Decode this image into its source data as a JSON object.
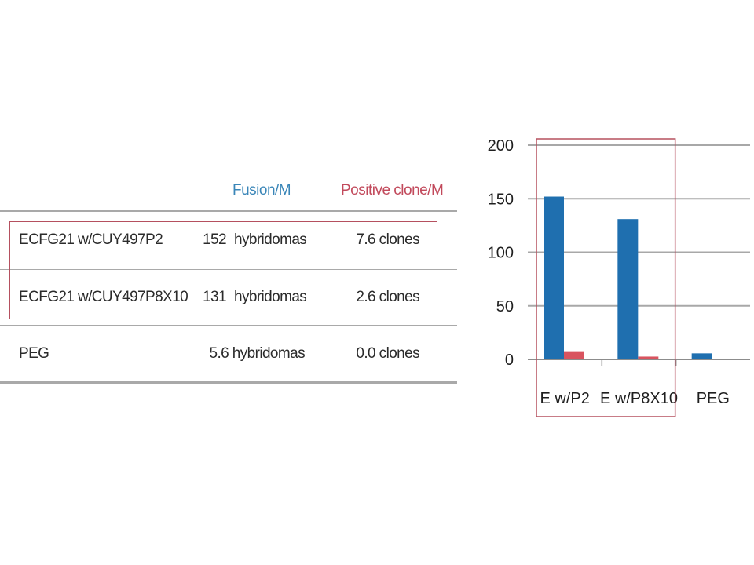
{
  "table": {
    "headers": {
      "fusion": "Fusion/M",
      "positive": "Positive clone/M"
    },
    "rows": [
      {
        "name": "ECFG21 w/CUY497P2",
        "fusion_value": "152",
        "fusion_unit": "hybridomas",
        "clones": "7.6 clones",
        "highlighted": true
      },
      {
        "name": "ECFG21 w/CUY497P8X10",
        "fusion_value": "131",
        "fusion_unit": "hybridomas",
        "clones": "2.6 clones",
        "highlighted": true
      },
      {
        "name": "PEG",
        "fusion_full": "5.6 hybridomas",
        "clones": "0.0 clones",
        "highlighted": false
      }
    ]
  },
  "colors": {
    "fusion": "#1f6faf",
    "positive": "#d9545f",
    "highlight_border": "#b5505f"
  },
  "chart_data": {
    "type": "bar",
    "categories": [
      "E w/P2",
      "E w/P8X10",
      "PEG"
    ],
    "series": [
      {
        "values": [
          152,
          131,
          5.6
        ]
      },
      {
        "values": [
          7.6,
          2.6,
          0
        ]
      }
    ],
    "ylim": [
      0,
      200
    ],
    "yticks": [
      0,
      50,
      100,
      150,
      200
    ],
    "grid": true,
    "highlighted_categories": [
      "E w/P2",
      "E w/P8X10"
    ]
  }
}
